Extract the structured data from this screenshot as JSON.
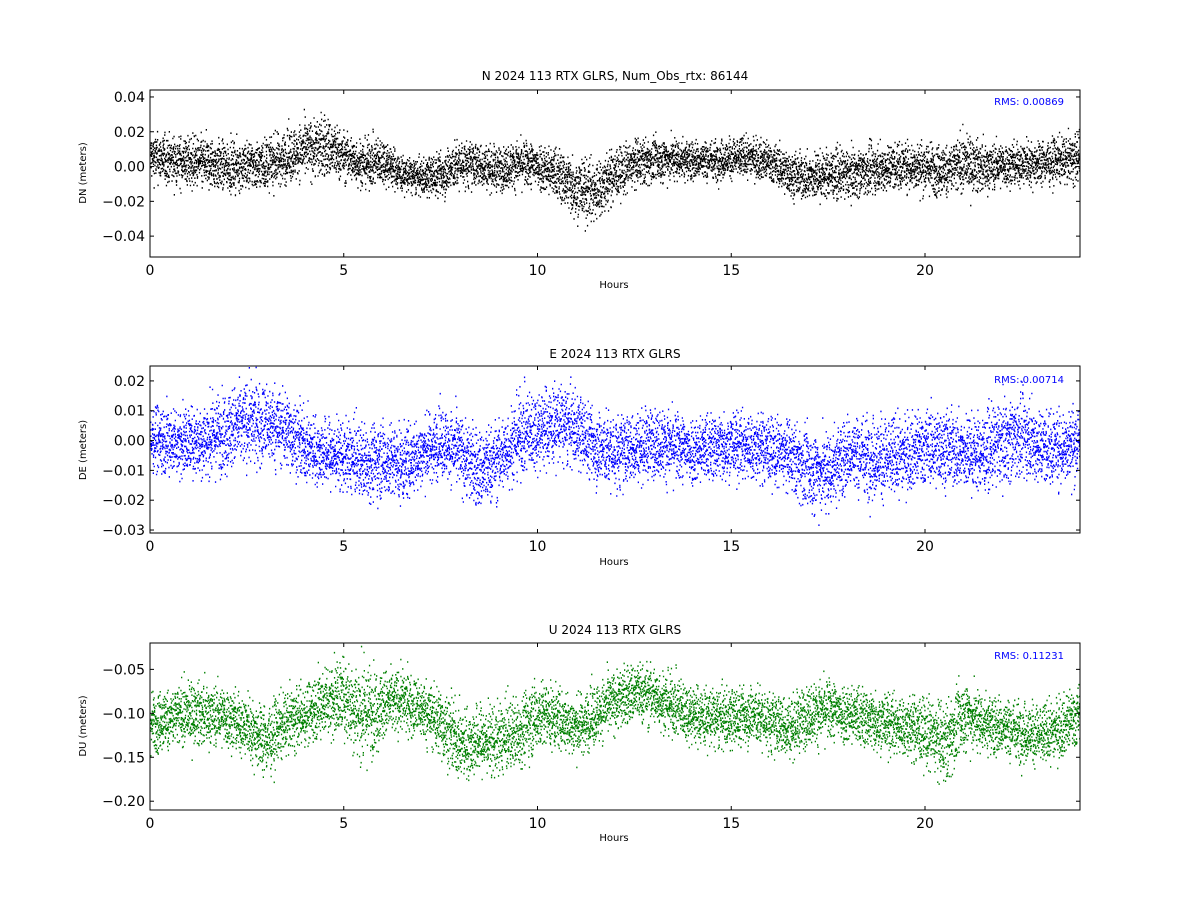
{
  "chart_data": [
    {
      "type": "scatter",
      "title": "N 2024 113 RTX  GLRS, Num_Obs_rtx: 86144",
      "xlabel": "Hours",
      "ylabel": "DN (meters)",
      "xlim": [
        0,
        24
      ],
      "ylim": [
        -0.052,
        0.044
      ],
      "xticks": [
        0,
        5,
        10,
        15,
        20
      ],
      "xtick_labels": [
        "0",
        "5",
        "10",
        "15",
        "20"
      ],
      "yticks": [
        -0.04,
        -0.02,
        0.0,
        0.02,
        0.04
      ],
      "ytick_labels": [
        "−0.04",
        "−0.02",
        "0.00",
        "0.02",
        "0.04"
      ],
      "annotation": "RMS:  0.00869",
      "color": "#000000",
      "annotation_color": "#0000ff",
      "grid": false,
      "series": [
        {
          "x": [
            0,
            0.5,
            1,
            1.5,
            2,
            2.5,
            3,
            3.5,
            4,
            4.5,
            5,
            5.5,
            6,
            6.5,
            7,
            7.5,
            8,
            8.5,
            9,
            9.5,
            10,
            10.5,
            11,
            11.5,
            12,
            12.5,
            13,
            13.5,
            14,
            14.5,
            15,
            15.5,
            16,
            16.5,
            17,
            17.5,
            18,
            18.5,
            19,
            19.5,
            20,
            20.5,
            21,
            21.5,
            22,
            22.5,
            23,
            23.5,
            24
          ],
          "center": [
            0.006,
            0.004,
            0.003,
            0.002,
            0.0,
            0.001,
            0.002,
            0.006,
            0.01,
            0.012,
            0.006,
            0.002,
            0.004,
            -0.004,
            -0.006,
            -0.004,
            0.002,
            0.001,
            -0.001,
            0.002,
            0.001,
            -0.004,
            -0.012,
            -0.014,
            -0.004,
            0.002,
            0.004,
            0.005,
            0.004,
            0.004,
            0.005,
            0.006,
            0.003,
            -0.004,
            -0.006,
            -0.004,
            -0.004,
            -0.002,
            0.0,
            0.001,
            0.0,
            -0.002,
            0.002,
            0.0,
            0.001,
            0.002,
            0.003,
            0.004,
            0.005
          ],
          "spread": [
            0.012,
            0.012,
            0.013,
            0.013,
            0.012,
            0.012,
            0.013,
            0.013,
            0.014,
            0.016,
            0.012,
            0.012,
            0.012,
            0.009,
            0.009,
            0.012,
            0.012,
            0.011,
            0.011,
            0.011,
            0.012,
            0.013,
            0.016,
            0.016,
            0.013,
            0.012,
            0.011,
            0.011,
            0.01,
            0.01,
            0.01,
            0.01,
            0.01,
            0.011,
            0.012,
            0.012,
            0.012,
            0.012,
            0.012,
            0.012,
            0.013,
            0.013,
            0.014,
            0.012,
            0.011,
            0.011,
            0.011,
            0.011,
            0.012
          ]
        }
      ]
    },
    {
      "type": "scatter",
      "title": "E 2024 113 RTX  GLRS",
      "xlabel": "Hours",
      "ylabel": "DE (meters)",
      "xlim": [
        0,
        24
      ],
      "ylim": [
        -0.031,
        0.025
      ],
      "xticks": [
        0,
        5,
        10,
        15,
        20
      ],
      "xtick_labels": [
        "0",
        "5",
        "10",
        "15",
        "20"
      ],
      "yticks": [
        -0.03,
        -0.02,
        -0.01,
        0.0,
        0.01,
        0.02
      ],
      "ytick_labels": [
        "−0.03",
        "−0.02",
        "−0.01",
        "0.00",
        "0.01",
        "0.02"
      ],
      "annotation": "RMS:  0.00714",
      "color": "#0000ff",
      "annotation_color": "#0000ff",
      "grid": false,
      "series": [
        {
          "x": [
            0,
            0.5,
            1,
            1.5,
            2,
            2.5,
            3,
            3.5,
            4,
            4.5,
            5,
            5.5,
            6,
            6.5,
            7,
            7.5,
            8,
            8.5,
            9,
            9.5,
            10,
            10.5,
            11,
            11.5,
            12,
            12.5,
            13,
            13.5,
            14,
            14.5,
            15,
            15.5,
            16,
            16.5,
            17,
            17.5,
            18,
            18.5,
            19,
            19.5,
            20,
            20.5,
            21,
            21.5,
            22,
            22.5,
            23,
            23.5,
            24
          ],
          "center": [
            0.002,
            0.0,
            0.0,
            0.001,
            0.004,
            0.006,
            0.006,
            0.004,
            -0.002,
            -0.004,
            -0.005,
            -0.007,
            -0.006,
            -0.008,
            -0.004,
            0.0,
            -0.004,
            -0.01,
            -0.006,
            0.002,
            0.004,
            0.006,
            0.004,
            -0.002,
            -0.004,
            -0.002,
            0.0,
            -0.002,
            -0.003,
            -0.002,
            -0.001,
            -0.002,
            -0.003,
            -0.005,
            -0.01,
            -0.01,
            -0.004,
            -0.005,
            -0.006,
            -0.004,
            -0.002,
            -0.002,
            -0.004,
            -0.004,
            0.0,
            0.002,
            -0.002,
            -0.002,
            0.0
          ],
          "spread": [
            0.01,
            0.01,
            0.01,
            0.011,
            0.012,
            0.012,
            0.012,
            0.011,
            0.01,
            0.01,
            0.01,
            0.011,
            0.011,
            0.011,
            0.01,
            0.01,
            0.011,
            0.012,
            0.011,
            0.012,
            0.012,
            0.012,
            0.011,
            0.011,
            0.011,
            0.01,
            0.01,
            0.01,
            0.01,
            0.01,
            0.01,
            0.01,
            0.01,
            0.01,
            0.012,
            0.012,
            0.011,
            0.012,
            0.012,
            0.011,
            0.011,
            0.011,
            0.011,
            0.011,
            0.012,
            0.012,
            0.011,
            0.011,
            0.011
          ]
        }
      ]
    },
    {
      "type": "scatter",
      "title": "U 2024 113 RTX  GLRS",
      "xlabel": "Hours",
      "ylabel": "DU (meters)",
      "xlim": [
        0,
        24
      ],
      "ylim": [
        -0.21,
        -0.02
      ],
      "xticks": [
        0,
        5,
        10,
        15,
        20
      ],
      "xtick_labels": [
        "0",
        "5",
        "10",
        "15",
        "20"
      ],
      "yticks": [
        -0.05,
        -0.1,
        -0.15,
        -0.2
      ],
      "ytick_labels": [
        "−0.05",
        "−0.10",
        "−0.15",
        "−0.20"
      ],
      "annotation": "RMS:  0.11231",
      "color": "#008000",
      "annotation_color": "#0000ff",
      "grid": false,
      "series": [
        {
          "x": [
            0,
            0.5,
            1,
            1.5,
            2,
            2.5,
            3,
            3.5,
            4,
            4.5,
            5,
            5.5,
            6,
            6.5,
            7,
            7.5,
            8,
            8.5,
            9,
            9.5,
            10,
            10.5,
            11,
            11.5,
            12,
            12.5,
            13,
            13.5,
            14,
            14.5,
            15,
            15.5,
            16,
            16.5,
            17,
            17.5,
            18,
            18.5,
            19,
            19.5,
            20,
            20.5,
            21,
            21.5,
            22,
            22.5,
            23,
            23.5,
            24
          ],
          "center": [
            -0.11,
            -0.105,
            -0.1,
            -0.1,
            -0.105,
            -0.115,
            -0.13,
            -0.11,
            -0.1,
            -0.085,
            -0.08,
            -0.1,
            -0.09,
            -0.085,
            -0.095,
            -0.11,
            -0.135,
            -0.13,
            -0.13,
            -0.12,
            -0.1,
            -0.105,
            -0.115,
            -0.1,
            -0.085,
            -0.075,
            -0.08,
            -0.09,
            -0.1,
            -0.105,
            -0.105,
            -0.1,
            -0.11,
            -0.115,
            -0.1,
            -0.095,
            -0.1,
            -0.105,
            -0.11,
            -0.115,
            -0.12,
            -0.135,
            -0.1,
            -0.11,
            -0.115,
            -0.12,
            -0.125,
            -0.115,
            -0.1
          ],
          "spread": [
            0.03,
            0.03,
            0.03,
            0.03,
            0.03,
            0.03,
            0.035,
            0.03,
            0.03,
            0.035,
            0.04,
            0.05,
            0.035,
            0.03,
            0.03,
            0.035,
            0.035,
            0.035,
            0.035,
            0.035,
            0.035,
            0.03,
            0.03,
            0.03,
            0.03,
            0.03,
            0.03,
            0.03,
            0.03,
            0.03,
            0.03,
            0.03,
            0.03,
            0.03,
            0.03,
            0.03,
            0.03,
            0.03,
            0.03,
            0.03,
            0.035,
            0.04,
            0.035,
            0.03,
            0.03,
            0.03,
            0.03,
            0.03,
            0.03
          ]
        }
      ]
    }
  ]
}
